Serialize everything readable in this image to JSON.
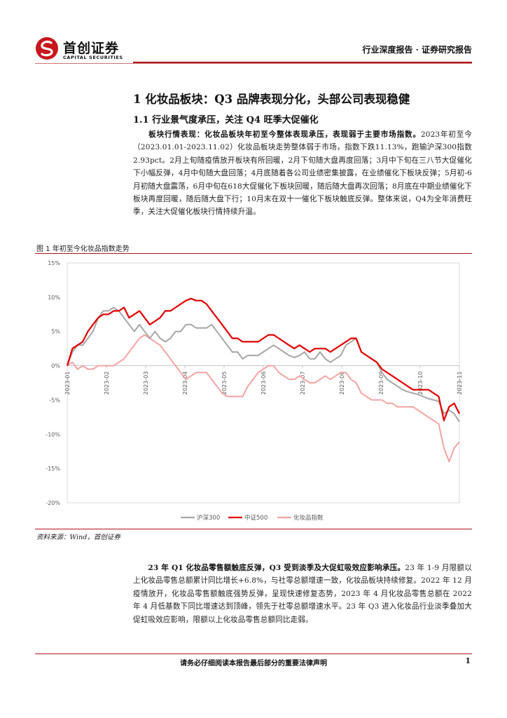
{
  "header": {
    "logo_cn": "首创证券",
    "logo_en": "CAPITAL SECURITIES",
    "report_type": "行业深度报告 · 证券研究报告"
  },
  "section": {
    "h1": "1 化妆品板块：Q3 品牌表现分化，头部公司表现稳健",
    "h2": "1.1 行业景气度承压，关注 Q4 旺季大促催化"
  },
  "para1": {
    "bold": "板块行情表现：化妆品板块年初至今整体表现承压，表现弱于主要市场指数。",
    "text": "2023年初至今（2023.01.01-2023.11.02）化妆品板块走势整体弱于市场，指数下跌11.13%，跑输沪深300指数2.93pct。2月上旬随疫情放开板块有所回暖，2月下旬随大盘再度回落；3月中下旬在三八节大促催化下小幅反弹，4月中旬随大盘回落；4月底随着各公司业绩密集披露，在业绩催化下板块反弹；5月初-6月初随大盘震荡，6月中旬在618大促催化下板块回暖，随后随大盘再次回落；8月底在中期业绩催化下板块再度回暖，随后随大盘下行；10月末在双十一催化下板块触底反弹。整体来说，Q4为全年消费旺季，关注大促催化板块行情持续升温。"
  },
  "figure": {
    "title": "图 1 年初至今化妆品指数走势",
    "source": "资料来源：Wind，首创证券"
  },
  "chart_data": {
    "type": "line",
    "title": "",
    "ylim": [
      -20,
      15
    ],
    "yticks": [
      "15%",
      "10%",
      "5%",
      "0%",
      "-5%",
      "-10%",
      "-15%",
      "-20%"
    ],
    "xticks": [
      "2023-01",
      "2023-02",
      "2023-03",
      "2023-04",
      "2023-05",
      "2023-06",
      "2023-07",
      "2023-08",
      "2023-09",
      "2023-10",
      "2023-11"
    ],
    "legend_position": "bottom",
    "series": [
      {
        "name": "沪深300",
        "color": "#a6a6a6",
        "values": [
          0,
          2,
          3,
          3,
          4,
          5,
          7,
          8,
          8,
          8.5,
          8,
          7,
          6,
          5,
          6,
          5,
          4,
          5,
          4,
          3.5,
          4,
          5,
          5,
          6,
          6,
          5.5,
          5.5,
          5.5,
          6,
          5,
          4,
          3,
          2,
          2,
          1,
          1.5,
          1.5,
          1.5,
          2,
          2.5,
          3,
          2.5,
          2,
          1.5,
          1.2,
          1.5,
          2,
          1,
          1,
          2,
          1,
          0.5,
          1,
          1.5,
          3,
          3.5,
          4,
          2,
          1.5,
          1,
          0.5,
          -1,
          -2,
          -2.5,
          -3,
          -3.5,
          -3.8,
          -4,
          -4.2,
          -4.5,
          -4.8,
          -5,
          -5.2,
          -7,
          -6.5,
          -7,
          -8.2
        ]
      },
      {
        "name": "中证500",
        "color": "#e00000",
        "values": [
          0,
          2.5,
          3,
          3.5,
          5,
          6,
          7,
          7.5,
          7.5,
          8,
          8,
          8.5,
          7,
          7.5,
          8,
          7,
          6,
          6.5,
          7,
          8,
          8,
          8.5,
          9,
          9.5,
          9.8,
          9.5,
          9.5,
          9,
          8,
          7,
          6,
          5,
          4,
          4,
          3.5,
          3.5,
          3.5,
          3.5,
          4,
          4.5,
          4.5,
          4,
          3.5,
          3,
          2.5,
          3,
          2.5,
          2,
          2.5,
          2.5,
          2.5,
          2,
          2.5,
          3,
          3.5,
          4,
          4,
          2,
          1.5,
          1,
          0.5,
          -0.5,
          -1,
          -1.5,
          -2,
          -2.5,
          -3,
          -3.5,
          -3.5,
          -3.5,
          -3.5,
          -4,
          -4.5,
          -8,
          -6,
          -5.5,
          -7
        ]
      },
      {
        "name": "化妆品指数",
        "color": "#f4a3a3",
        "values": [
          0,
          0.5,
          -0.5,
          0,
          -0.5,
          -0.5,
          0,
          0,
          0,
          0,
          0.5,
          1,
          2,
          3,
          4,
          4.5,
          4,
          3.5,
          3,
          2,
          1,
          0,
          -1,
          -2,
          -1.5,
          -1,
          -1,
          -1,
          -2,
          -3,
          -4,
          -4.5,
          -4.5,
          -4.5,
          -4.5,
          -3,
          -2,
          -1,
          -0.5,
          0,
          0,
          -1,
          -1.5,
          -2,
          -2,
          -1.5,
          -2,
          -2.5,
          -2.5,
          -2,
          -1.5,
          -2,
          -1.5,
          -1,
          -1,
          -2,
          -2.5,
          -4,
          -4.5,
          -5,
          -5,
          -5,
          -5.5,
          -5.5,
          -6,
          -6,
          -6,
          -6,
          -6.5,
          -7,
          -7.5,
          -8,
          -8.5,
          -12,
          -14,
          -12,
          -11.13
        ]
      }
    ]
  },
  "para2": {
    "bold": "23 年 Q1 化妆品零售额触底反弹，Q3 受到淡季及大促虹吸效应影响承压。",
    "text": "23 年 1-9 月限额以上化妆品零售总额累计同比增长+6.8%，与社零总额增速一致，化妆品板块持续修复。2022 年 12 月疫情放开，化妆品零售额触底强势反弹，呈现快速修复态势，2023 年 4 月化妆品零售总额在 2022 年 4 月低基数下同比增速达到顶峰，领先于社零总额增速水平。23 年 Q3 进入化妆品行业淡季叠加大促虹吸效应影响，限额以上化妆品零售总额同比走弱。"
  },
  "footer": {
    "text": "请务必仔细阅读本报告最后部分的重要法律声明",
    "page": "1"
  }
}
